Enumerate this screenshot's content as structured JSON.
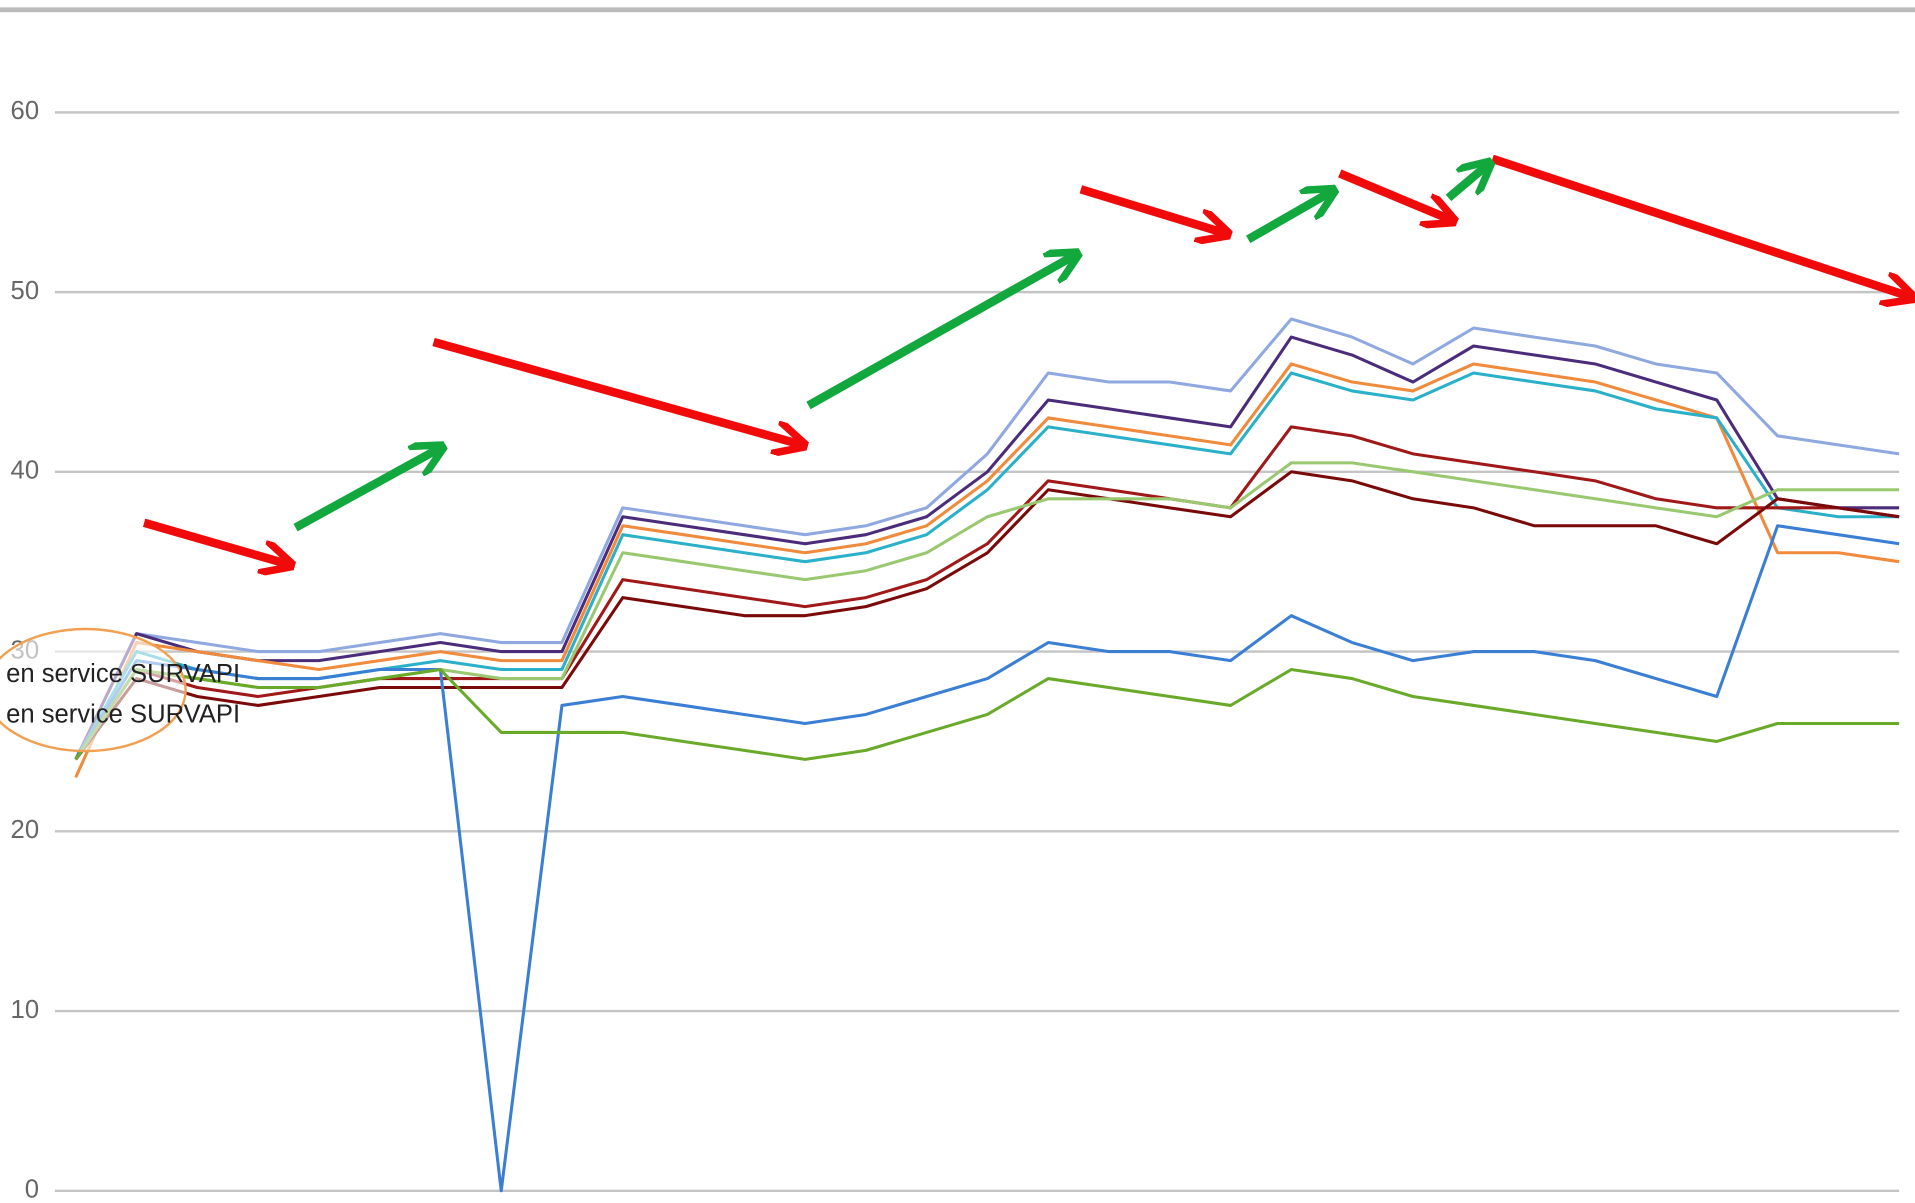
{
  "chart_data": {
    "type": "line",
    "annotations": [
      "en service SURVAPI",
      "en service SURVAPI"
    ],
    "ylim": [
      0,
      60
    ],
    "yticks": [
      0,
      10,
      20,
      30,
      40,
      50,
      60
    ],
    "grid": true,
    "series": [
      {
        "color": "#8fa8e0",
        "values": [
          24,
          31,
          30.5,
          30,
          30,
          30.5,
          31,
          30.5,
          30.5,
          38,
          37.5,
          37,
          36.5,
          37,
          38,
          41,
          45.5,
          45,
          45,
          44.5,
          48.5,
          47.5,
          46,
          48,
          47.5,
          47,
          46,
          45.5,
          42,
          41.5,
          41
        ]
      },
      {
        "color": "#4b2c7a",
        "values": [
          24,
          31,
          30,
          29.5,
          29.5,
          30,
          30.5,
          30,
          30,
          37.5,
          37,
          36.5,
          36,
          36.5,
          37.5,
          40,
          44,
          43.5,
          43,
          42.5,
          47.5,
          46.5,
          45,
          47,
          46.5,
          46,
          45,
          44,
          38.5,
          38,
          38
        ]
      },
      {
        "color": "#f08a3c",
        "values": [
          23,
          30.5,
          30,
          29.5,
          29,
          29.5,
          30,
          29.5,
          29.5,
          37,
          36.5,
          36,
          35.5,
          36,
          37,
          39.5,
          43,
          42.5,
          42,
          41.5,
          46,
          45,
          44.5,
          46,
          45.5,
          45,
          44,
          43,
          35.5,
          35.5,
          35
        ]
      },
      {
        "color": "#2ab0c8",
        "values": [
          24,
          30,
          29,
          28.5,
          28.5,
          29,
          29.5,
          29,
          29,
          36.5,
          36,
          35.5,
          35,
          35.5,
          36.5,
          39,
          42.5,
          42,
          41.5,
          41,
          45.5,
          44.5,
          44,
          45.5,
          45,
          44.5,
          43.5,
          43,
          38,
          37.5,
          37.5
        ]
      },
      {
        "color": "#a01818",
        "values": [
          24,
          29,
          28,
          27.5,
          28,
          28.5,
          28.5,
          28.5,
          28.5,
          34,
          33.5,
          33,
          32.5,
          33,
          34,
          36,
          39.5,
          39,
          38.5,
          38,
          42.5,
          42,
          41,
          40.5,
          40,
          39.5,
          38.5,
          38,
          38,
          38,
          37.5
        ]
      },
      {
        "color": "#7a0a0a",
        "values": [
          24,
          28.5,
          27.5,
          27,
          27.5,
          28,
          28,
          28,
          28,
          33,
          32.5,
          32,
          32,
          32.5,
          33.5,
          35.5,
          39,
          38.5,
          38,
          37.5,
          40,
          39.5,
          38.5,
          38,
          37,
          37,
          37,
          36,
          38.5,
          38,
          37.5
        ]
      },
      {
        "color": "#9ac870",
        "values": [
          24,
          29,
          28.5,
          28,
          28,
          28.5,
          29,
          28.5,
          28.5,
          35.5,
          35,
          34.5,
          34,
          34.5,
          35.5,
          37.5,
          38.5,
          38.5,
          38.5,
          38,
          40.5,
          40.5,
          40,
          39.5,
          39,
          38.5,
          38,
          37.5,
          39,
          39,
          39
        ]
      },
      {
        "color": "#3a7fd4",
        "values": [
          24,
          29.5,
          29,
          28.5,
          28.5,
          29,
          29,
          0,
          27,
          27.5,
          27,
          26.5,
          26,
          26.5,
          27.5,
          28.5,
          30.5,
          30,
          30,
          29.5,
          32,
          30.5,
          29.5,
          30,
          30,
          29.5,
          28.5,
          27.5,
          37,
          36.5,
          36
        ]
      },
      {
        "color": "#6aaa2a",
        "values": [
          24,
          29,
          28.5,
          28,
          28,
          28.5,
          29,
          25.5,
          25.5,
          25.5,
          25,
          24.5,
          24,
          24.5,
          25.5,
          26.5,
          28.5,
          28,
          27.5,
          27,
          29,
          28.5,
          27.5,
          27,
          26.5,
          26,
          25.5,
          25,
          26,
          26,
          26
        ]
      }
    ]
  }
}
